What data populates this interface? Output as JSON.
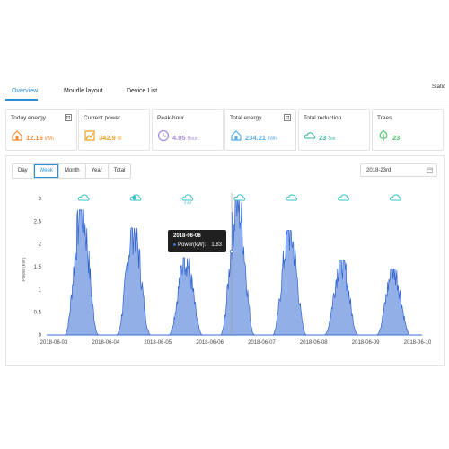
{
  "tabs": [
    {
      "label": "Overview",
      "active": true
    },
    {
      "label": "Moudle layout",
      "active": false
    },
    {
      "label": "Device List",
      "active": false
    }
  ],
  "station_label": "Statio",
  "cards": [
    {
      "title": "Today energy",
      "value": "12.16",
      "unit": "kWh",
      "color": "#f08b3a",
      "icon": "house-energy-icon"
    },
    {
      "title": "Current power",
      "value": "342.9",
      "unit": "W",
      "color": "#f0a020",
      "icon": "power-meter-icon"
    },
    {
      "title": "Peak-hour",
      "value": "4.05",
      "unit": "Hour",
      "color": "#a38bdc",
      "icon": "clock-icon"
    },
    {
      "title": "Total energy",
      "value": "234.21",
      "unit": "kWh",
      "color": "#5aaeea",
      "icon": "house-energy-icon"
    },
    {
      "title": "Total reduction",
      "value": "23",
      "unit": "Ton",
      "color": "#3bb6a2",
      "icon": "co2-cloud-icon"
    },
    {
      "title": "Trees",
      "value": "23",
      "unit": "",
      "color": "#4cc16c",
      "icon": "tree-icon"
    }
  ],
  "range_buttons": [
    {
      "label": "Day",
      "active": false
    },
    {
      "label": "Week",
      "active": true
    },
    {
      "label": "Month",
      "active": false
    },
    {
      "label": "Year",
      "active": false
    },
    {
      "label": "Total",
      "active": false
    }
  ],
  "date_value": "2018-23rd",
  "colors": {
    "accent": "#2b8fd6",
    "chart_fill": "#7fa2e3",
    "chart_line": "#2f63d0",
    "weather_icon": "#39c3c3"
  },
  "tooltip": {
    "date": "2018-06-06",
    "series": "Power(kW):",
    "value": "1.83"
  },
  "chart_data": {
    "type": "area",
    "ylabel": "Power(kW)",
    "ylim": [
      0,
      3
    ],
    "yticks": [
      "0",
      "0.5",
      "1",
      "1.5",
      "2",
      "2.5",
      "3"
    ],
    "xticks": [
      "2018-06-03",
      "2018-06-04",
      "2018-06-05",
      "2018-06-06",
      "2018-06-07",
      "2018-06-08",
      "2018-06-09",
      "2018-06-10"
    ],
    "weather_icons": [
      "cloudy-icon",
      "partly-cloudy-icon",
      "rain-icon",
      "cloudy-icon",
      "cloudy-icon",
      "cloudy-icon",
      "cloudy-icon"
    ],
    "series": [
      {
        "name": "Power(kW)",
        "daily_peaks": [
          {
            "date": "2018-06-03",
            "peak": 2.75
          },
          {
            "date": "2018-06-04",
            "peak": 2.35
          },
          {
            "date": "2018-06-05",
            "peak": 1.7
          },
          {
            "date": "2018-06-06",
            "peak": 2.95
          },
          {
            "date": "2018-06-07",
            "peak": 2.3
          },
          {
            "date": "2018-06-08",
            "peak": 1.65
          },
          {
            "date": "2018-06-09",
            "peak": 1.45
          }
        ]
      }
    ]
  }
}
